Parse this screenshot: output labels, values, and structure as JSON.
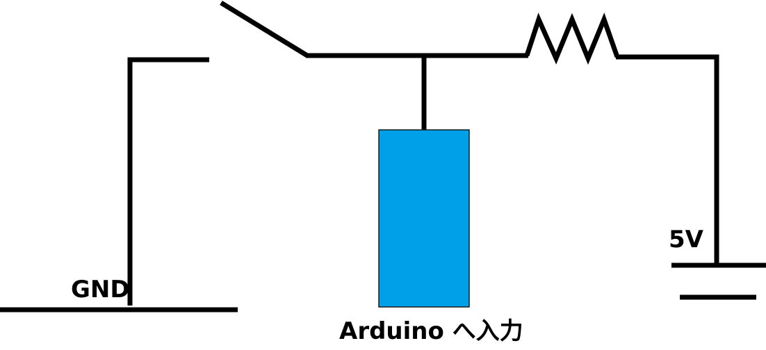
{
  "labels": {
    "gnd": "GND",
    "supply": "5V",
    "arduino_input": "Arduino へ入力"
  },
  "colors": {
    "wire": "#000000",
    "arduino_block_fill": "#00a0e9",
    "arduino_block_stroke": "#1a1a1a",
    "background": "#ffffff"
  }
}
